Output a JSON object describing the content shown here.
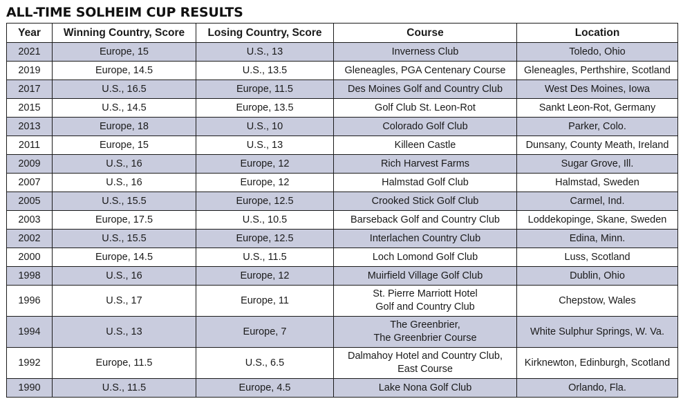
{
  "title": "ALL-TIME SOLHEIM CUP RESULTS",
  "shade_color": "#c9ccde",
  "headers": [
    "Year",
    "Winning Country, Score",
    "Losing Country, Score",
    "Course",
    "Location"
  ],
  "rows": [
    {
      "year": "2021",
      "winner": "Europe, 15",
      "loser": "U.S., 13",
      "course": [
        "Inverness Club"
      ],
      "location": "Toledo, Ohio"
    },
    {
      "year": "2019",
      "winner": "Europe, 14.5",
      "loser": "U.S., 13.5",
      "course": [
        "Gleneagles, PGA Centenary Course"
      ],
      "location": "Gleneagles, Perthshire, Scotland"
    },
    {
      "year": "2017",
      "winner": "U.S., 16.5",
      "loser": "Europe, 11.5",
      "course": [
        "Des Moines Golf and Country Club"
      ],
      "location": "West Des Moines, Iowa"
    },
    {
      "year": "2015",
      "winner": "U.S., 14.5",
      "loser": "Europe, 13.5",
      "course": [
        "Golf Club St. Leon-Rot"
      ],
      "location": "Sankt Leon-Rot, Germany"
    },
    {
      "year": "2013",
      "winner": "Europe, 18",
      "loser": "U.S., 10",
      "course": [
        "Colorado Golf Club"
      ],
      "location": "Parker, Colo."
    },
    {
      "year": "2011",
      "winner": "Europe, 15",
      "loser": "U.S., 13",
      "course": [
        "Killeen Castle"
      ],
      "location": "Dunsany, County Meath, Ireland"
    },
    {
      "year": "2009",
      "winner": "U.S., 16",
      "loser": "Europe, 12",
      "course": [
        "Rich Harvest Farms"
      ],
      "location": "Sugar Grove, Ill."
    },
    {
      "year": "2007",
      "winner": "U.S., 16",
      "loser": "Europe, 12",
      "course": [
        "Halmstad Golf Club"
      ],
      "location": "Halmstad, Sweden"
    },
    {
      "year": "2005",
      "winner": "U.S., 15.5",
      "loser": "Europe, 12.5",
      "course": [
        "Crooked Stick Golf Club"
      ],
      "location": "Carmel, Ind."
    },
    {
      "year": "2003",
      "winner": "Europe, 17.5",
      "loser": "U.S., 10.5",
      "course": [
        "Barseback Golf and Country Club"
      ],
      "location": "Loddekopinge, Skane, Sweden"
    },
    {
      "year": "2002",
      "winner": "U.S., 15.5",
      "loser": "Europe, 12.5",
      "course": [
        "Interlachen Country Club"
      ],
      "location": "Edina, Minn."
    },
    {
      "year": "2000",
      "winner": "Europe, 14.5",
      "loser": "U.S., 11.5",
      "course": [
        "Loch Lomond Golf Club"
      ],
      "location": "Luss, Scotland"
    },
    {
      "year": "1998",
      "winner": "U.S., 16",
      "loser": "Europe, 12",
      "course": [
        "Muirfield Village Golf Club"
      ],
      "location": "Dublin, Ohio"
    },
    {
      "year": "1996",
      "winner": "U.S., 17",
      "loser": "Europe, 11",
      "course": [
        "St. Pierre Marriott Hotel",
        "Golf and Country Club"
      ],
      "location": "Chepstow, Wales"
    },
    {
      "year": "1994",
      "winner": "U.S., 13",
      "loser": "Europe, 7",
      "course": [
        "The Greenbrier,",
        "The Greenbrier Course"
      ],
      "location": "White Sulphur Springs, W. Va."
    },
    {
      "year": "1992",
      "winner": "Europe, 11.5",
      "loser": "U.S., 6.5",
      "course": [
        "Dalmahoy Hotel and Country Club,",
        "East Course"
      ],
      "location": "Kirknewton, Edinburgh, Scotland"
    },
    {
      "year": "1990",
      "winner": "U.S., 11.5",
      "loser": "Europe, 4.5",
      "course": [
        "Lake Nona Golf Club"
      ],
      "location": "Orlando, Fla."
    }
  ]
}
